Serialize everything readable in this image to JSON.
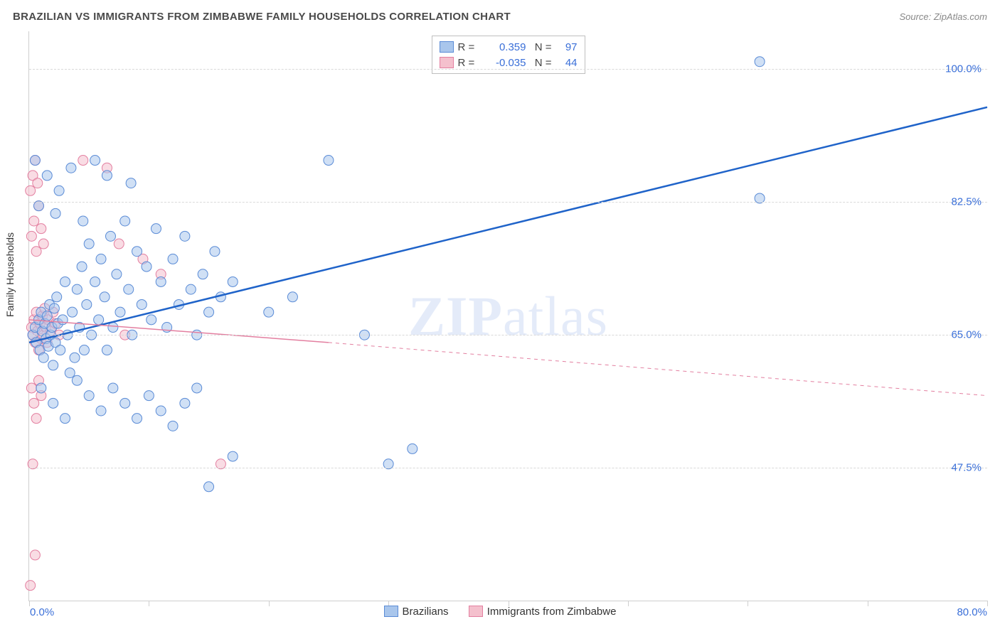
{
  "header": {
    "title": "BRAZILIAN VS IMMIGRANTS FROM ZIMBABWE FAMILY HOUSEHOLDS CORRELATION CHART",
    "source_label": "Source: ",
    "source_value": "ZipAtlas.com"
  },
  "watermark": {
    "zip": "ZIP",
    "atlas": "atlas"
  },
  "chart": {
    "type": "scatter",
    "xlim": [
      0,
      80
    ],
    "ylim": [
      30,
      105
    ],
    "x_unit": "%",
    "y_unit": "%",
    "y_gridlines": [
      47.5,
      65.0,
      82.5,
      100.0
    ],
    "y_tick_labels": [
      "47.5%",
      "65.0%",
      "82.5%",
      "100.0%"
    ],
    "x_ticks": [
      0,
      10,
      20,
      30,
      40,
      50,
      60,
      70,
      80
    ],
    "x_start_label": "0.0%",
    "x_end_label": "80.0%",
    "y_axis_label": "Family Households",
    "background_color": "#ffffff",
    "grid_color": "#d9d9d9",
    "axis_color": "#cfcfcf",
    "tick_label_color": "#3a6fd8",
    "marker_radius": 7,
    "marker_opacity": 0.55,
    "series": [
      {
        "name": "Brazilians",
        "color_fill": "#a9c6ec",
        "color_stroke": "#5a8bd6",
        "R": "0.359",
        "N": "97",
        "trend": {
          "from": [
            0,
            64
          ],
          "to": [
            80,
            95
          ],
          "within_to": [
            80,
            95
          ],
          "color": "#1f63c9",
          "width": 2.5
        },
        "points": [
          [
            0.3,
            65
          ],
          [
            0.5,
            66
          ],
          [
            0.6,
            64
          ],
          [
            0.8,
            67
          ],
          [
            0.9,
            63
          ],
          [
            1.0,
            68
          ],
          [
            1.1,
            65.5
          ],
          [
            1.2,
            62
          ],
          [
            1.3,
            66.5
          ],
          [
            1.4,
            64.5
          ],
          [
            1.5,
            67.5
          ],
          [
            1.6,
            63.5
          ],
          [
            1.7,
            69
          ],
          [
            1.8,
            65
          ],
          [
            1.9,
            66
          ],
          [
            2.0,
            61
          ],
          [
            2.1,
            68.5
          ],
          [
            2.2,
            64
          ],
          [
            2.3,
            70
          ],
          [
            2.4,
            66.5
          ],
          [
            2.6,
            63
          ],
          [
            2.8,
            67
          ],
          [
            3.0,
            72
          ],
          [
            3.2,
            65
          ],
          [
            3.4,
            60
          ],
          [
            3.6,
            68
          ],
          [
            3.8,
            62
          ],
          [
            4.0,
            71
          ],
          [
            4.2,
            66
          ],
          [
            4.4,
            74
          ],
          [
            4.6,
            63
          ],
          [
            4.8,
            69
          ],
          [
            5.0,
            77
          ],
          [
            5.2,
            65
          ],
          [
            5.5,
            72
          ],
          [
            5.8,
            67
          ],
          [
            6.0,
            75
          ],
          [
            6.3,
            70
          ],
          [
            6.5,
            63
          ],
          [
            6.8,
            78
          ],
          [
            7.0,
            66
          ],
          [
            7.3,
            73
          ],
          [
            7.6,
            68
          ],
          [
            8.0,
            80
          ],
          [
            8.3,
            71
          ],
          [
            8.6,
            65
          ],
          [
            9.0,
            76
          ],
          [
            9.4,
            69
          ],
          [
            9.8,
            74
          ],
          [
            10.2,
            67
          ],
          [
            10.6,
            79
          ],
          [
            11.0,
            72
          ],
          [
            11.5,
            66
          ],
          [
            12.0,
            75
          ],
          [
            12.5,
            69
          ],
          [
            13.0,
            78
          ],
          [
            13.5,
            71
          ],
          [
            14.0,
            65
          ],
          [
            14.5,
            73
          ],
          [
            15.0,
            68
          ],
          [
            15.5,
            76
          ],
          [
            16.0,
            70
          ],
          [
            1.0,
            58
          ],
          [
            2.0,
            56
          ],
          [
            3.0,
            54
          ],
          [
            4.0,
            59
          ],
          [
            5.0,
            57
          ],
          [
            6.0,
            55
          ],
          [
            7.0,
            58
          ],
          [
            8.0,
            56
          ],
          [
            9.0,
            54
          ],
          [
            10.0,
            57
          ],
          [
            11.0,
            55
          ],
          [
            12.0,
            53
          ],
          [
            13.0,
            56
          ],
          [
            14.0,
            58
          ],
          [
            0.5,
            88
          ],
          [
            1.5,
            86
          ],
          [
            2.5,
            84
          ],
          [
            3.5,
            87
          ],
          [
            5.5,
            88
          ],
          [
            6.5,
            86
          ],
          [
            8.5,
            85
          ],
          [
            0.8,
            82
          ],
          [
            2.2,
            81
          ],
          [
            4.5,
            80
          ],
          [
            17,
            72
          ],
          [
            20,
            68
          ],
          [
            15,
            45
          ],
          [
            17,
            49
          ],
          [
            25,
            88
          ],
          [
            28,
            65
          ],
          [
            30,
            48
          ],
          [
            32,
            50
          ],
          [
            22,
            70
          ],
          [
            61,
            101
          ],
          [
            61,
            83
          ]
        ]
      },
      {
        "name": "Immigrants from Zimbabwe",
        "color_fill": "#f4c0cd",
        "color_stroke": "#e37fa0",
        "R": "-0.035",
        "N": "44",
        "trend": {
          "from": [
            0,
            67
          ],
          "to": [
            80,
            57
          ],
          "within_to": [
            25,
            64
          ],
          "color": "#e37fa0",
          "width": 1.5
        },
        "points": [
          [
            0.2,
            66
          ],
          [
            0.3,
            65
          ],
          [
            0.4,
            67
          ],
          [
            0.5,
            64
          ],
          [
            0.6,
            68
          ],
          [
            0.7,
            65.5
          ],
          [
            0.8,
            63
          ],
          [
            0.9,
            66.5
          ],
          [
            1.0,
            64.5
          ],
          [
            1.1,
            67.5
          ],
          [
            1.2,
            65
          ],
          [
            1.3,
            68.5
          ],
          [
            1.4,
            66
          ],
          [
            1.5,
            64
          ],
          [
            1.6,
            67
          ],
          [
            1.8,
            65.5
          ],
          [
            2.0,
            68
          ],
          [
            2.2,
            66.5
          ],
          [
            2.5,
            65
          ],
          [
            0.2,
            78
          ],
          [
            0.4,
            80
          ],
          [
            0.6,
            76
          ],
          [
            0.8,
            82
          ],
          [
            1.0,
            79
          ],
          [
            1.2,
            77
          ],
          [
            0.3,
            86
          ],
          [
            0.5,
            88
          ],
          [
            0.7,
            85
          ],
          [
            0.1,
            84
          ],
          [
            0.2,
            58
          ],
          [
            0.4,
            56
          ],
          [
            0.6,
            54
          ],
          [
            0.8,
            59
          ],
          [
            1.0,
            57
          ],
          [
            0.3,
            48
          ],
          [
            0.5,
            36
          ],
          [
            0.1,
            32
          ],
          [
            4.5,
            88
          ],
          [
            6.5,
            87
          ],
          [
            7.5,
            77
          ],
          [
            9.5,
            75
          ],
          [
            16,
            48
          ],
          [
            8,
            65
          ],
          [
            11,
            73
          ]
        ]
      }
    ]
  },
  "legend_top": {
    "r_label": "R =",
    "n_label": "N ="
  },
  "legend_bottom": {
    "series1": "Brazilians",
    "series2": "Immigrants from Zimbabwe"
  }
}
